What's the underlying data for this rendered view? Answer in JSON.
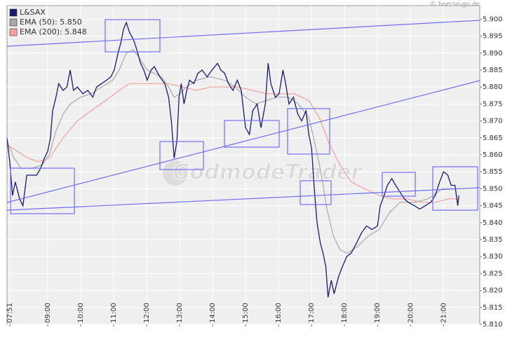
{
  "chart_data": {
    "type": "line",
    "copyright": "© boerse-go.de",
    "watermark": "GodmodeTrader",
    "legend": "upper left",
    "grid": true,
    "xlim": [
      466,
      1326
    ],
    "xticks": [
      {
        "value": 471,
        "label": "07:51"
      },
      {
        "value": 540,
        "label": "09:00"
      },
      {
        "value": 600,
        "label": "10:00"
      },
      {
        "value": 660,
        "label": "11:00"
      },
      {
        "value": 720,
        "label": "12:00"
      },
      {
        "value": 780,
        "label": "13:00"
      },
      {
        "value": 840,
        "label": "14:00"
      },
      {
        "value": 900,
        "label": "15:00"
      },
      {
        "value": 960,
        "label": "16:00"
      },
      {
        "value": 1020,
        "label": "17:00"
      },
      {
        "value": 1080,
        "label": "18:00"
      },
      {
        "value": 1140,
        "label": "19:00"
      },
      {
        "value": 1200,
        "label": "20:00"
      },
      {
        "value": 1260,
        "label": "21:00"
      }
    ],
    "ylim": [
      5.81,
      5.904
    ],
    "yticks": [
      {
        "value": 5.81,
        "label": "5.810"
      },
      {
        "value": 5.815,
        "label": "5.815"
      },
      {
        "value": 5.82,
        "label": "5.820"
      },
      {
        "value": 5.825,
        "label": "5.825"
      },
      {
        "value": 5.83,
        "label": "5.830"
      },
      {
        "value": 5.835,
        "label": "5.835"
      },
      {
        "value": 5.84,
        "label": "5.840"
      },
      {
        "value": 5.845,
        "label": "5.845"
      },
      {
        "value": 5.85,
        "label": "5.850"
      },
      {
        "value": 5.855,
        "label": "5.855"
      },
      {
        "value": 5.86,
        "label": "5.860"
      },
      {
        "value": 5.865,
        "label": "5.865"
      },
      {
        "value": 5.87,
        "label": "5.870"
      },
      {
        "value": 5.875,
        "label": "5.875"
      },
      {
        "value": 5.88,
        "label": "5.880"
      },
      {
        "value": 5.885,
        "label": "5.885"
      },
      {
        "value": 5.89,
        "label": "5.890"
      },
      {
        "value": 5.895,
        "label": "5.895"
      },
      {
        "value": 5.9,
        "label": "5.900"
      }
    ],
    "series": [
      {
        "name": "EMA (200): 5.848",
        "color": "#f4a0a0",
        "x": [
          466,
          485,
          504,
          523,
          543,
          568,
          594,
          619,
          645,
          670,
          689,
          709,
          734,
          760,
          785,
          811,
          836,
          862,
          887,
          913,
          938,
          964,
          989,
          1015,
          1034,
          1053,
          1072,
          1092,
          1117,
          1143,
          1168,
          1194,
          1219,
          1245,
          1270,
          1288
        ],
        "values": [
          5.863,
          5.861,
          5.859,
          5.858,
          5.859,
          5.865,
          5.87,
          5.873,
          5.876,
          5.879,
          5.881,
          5.881,
          5.881,
          5.881,
          5.88,
          5.879,
          5.88,
          5.88,
          5.88,
          5.879,
          5.878,
          5.878,
          5.878,
          5.876,
          5.871,
          5.863,
          5.857,
          5.852,
          5.85,
          5.848,
          5.847,
          5.847,
          5.846,
          5.846,
          5.847,
          5.847
        ]
      },
      {
        "name": "EMA (50): 5.850",
        "color": "#a8a8a8",
        "x": [
          466,
          479,
          492,
          511,
          530,
          543,
          555,
          568,
          581,
          600,
          619,
          638,
          658,
          670,
          683,
          696,
          709,
          721,
          734,
          747,
          760,
          770,
          780,
          792,
          811,
          836,
          862,
          881,
          900,
          919,
          938,
          958,
          977,
          996,
          1015,
          1028,
          1038,
          1048,
          1060,
          1072,
          1085,
          1104,
          1123,
          1143,
          1162,
          1181,
          1207,
          1232,
          1258,
          1277,
          1288
        ],
        "values": [
          5.864,
          5.859,
          5.856,
          5.856,
          5.857,
          5.86,
          5.867,
          5.872,
          5.875,
          5.877,
          5.878,
          5.88,
          5.882,
          5.885,
          5.89,
          5.891,
          5.888,
          5.885,
          5.884,
          5.883,
          5.88,
          5.877,
          5.878,
          5.88,
          5.882,
          5.883,
          5.882,
          5.88,
          5.877,
          5.875,
          5.876,
          5.877,
          5.877,
          5.875,
          5.871,
          5.862,
          5.854,
          5.844,
          5.836,
          5.832,
          5.831,
          5.833,
          5.836,
          5.838,
          5.843,
          5.846,
          5.846,
          5.847,
          5.85,
          5.85,
          5.85
        ]
      },
      {
        "name": "L&SAX",
        "color": "#1a1a6e",
        "x": [
          466,
          471,
          476,
          481,
          489,
          495,
          502,
          511,
          520,
          527,
          534,
          540,
          545,
          549,
          555,
          560,
          568,
          575,
          581,
          587,
          594,
          604,
          613,
          622,
          629,
          638,
          647,
          655,
          661,
          668,
          673,
          678,
          683,
          689,
          696,
          702,
          709,
          715,
          721,
          728,
          734,
          744,
          753,
          760,
          765,
          770,
          775,
          779,
          783,
          788,
          793,
          798,
          806,
          813,
          821,
          830,
          839,
          849,
          855,
          862,
          869,
          877,
          885,
          892,
          900,
          907,
          913,
          921,
          928,
          936,
          941,
          946,
          954,
          961,
          968,
          973,
          979,
          987,
          995,
          1002,
          1010,
          1015,
          1020,
          1025,
          1030,
          1036,
          1041,
          1046,
          1050,
          1056,
          1061,
          1069,
          1076,
          1084,
          1092,
          1102,
          1111,
          1120,
          1130,
          1140,
          1145,
          1152,
          1158,
          1166,
          1173,
          1181,
          1189,
          1196,
          1207,
          1217,
          1227,
          1237,
          1245,
          1253,
          1260,
          1268,
          1274,
          1281,
          1286,
          1288
        ],
        "values": [
          5.865,
          5.858,
          5.848,
          5.852,
          5.847,
          5.845,
          5.854,
          5.854,
          5.854,
          5.856,
          5.859,
          5.861,
          5.865,
          5.873,
          5.877,
          5.881,
          5.879,
          5.88,
          5.885,
          5.879,
          5.88,
          5.878,
          5.879,
          5.877,
          5.88,
          5.881,
          5.882,
          5.883,
          5.885,
          5.89,
          5.893,
          5.897,
          5.899,
          5.896,
          5.894,
          5.891,
          5.887,
          5.885,
          5.882,
          5.885,
          5.886,
          5.883,
          5.881,
          5.877,
          5.87,
          5.859,
          5.864,
          5.877,
          5.881,
          5.875,
          5.879,
          5.882,
          5.881,
          5.884,
          5.885,
          5.883,
          5.885,
          5.887,
          5.885,
          5.884,
          5.881,
          5.879,
          5.882,
          5.879,
          5.868,
          5.866,
          5.873,
          5.875,
          5.868,
          5.875,
          5.887,
          5.881,
          5.877,
          5.878,
          5.885,
          5.881,
          5.875,
          5.877,
          5.872,
          5.87,
          5.873,
          5.866,
          5.862,
          5.85,
          5.84,
          5.834,
          5.831,
          5.827,
          5.818,
          5.823,
          5.819,
          5.824,
          5.827,
          5.83,
          5.831,
          5.834,
          5.837,
          5.839,
          5.838,
          5.839,
          5.845,
          5.848,
          5.851,
          5.853,
          5.851,
          5.849,
          5.847,
          5.846,
          5.845,
          5.844,
          5.845,
          5.846,
          5.848,
          5.852,
          5.855,
          5.854,
          5.851,
          5.851,
          5.845,
          5.848
        ]
      }
    ]
  }
}
